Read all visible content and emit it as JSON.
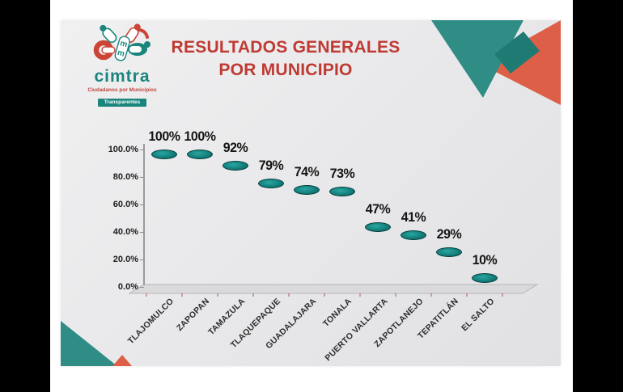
{
  "window": {
    "outer_bg": "#000000",
    "page_bg": "#ffffff",
    "card_bg": "#e9e9eb"
  },
  "logo": {
    "wordmark": "cimtra",
    "subtitle": "Ciudadanos por Municipios",
    "banner": "Transparentes",
    "teal": "#1a857d",
    "red": "#cc4436"
  },
  "title": {
    "line1": "RESULTADOS GENERALES",
    "line2": "POR MUNICIPIO",
    "color": "#bf3a33"
  },
  "chart_data": {
    "type": "bar",
    "style": "3d-cylinder",
    "title": "RESULTADOS GENERALES POR MUNICIPIO",
    "categories": [
      "TLAJOMULCO",
      "ZAPOPAN",
      "TAMAZULA",
      "TLAQUEPAQUE",
      "GUADALAJARA",
      "TONALA",
      "PUERTO VALLARTA",
      "ZAPOTLANEJO",
      "TEPATITLÁN",
      "EL SALTO"
    ],
    "values": [
      100,
      100,
      92,
      79,
      74,
      73,
      47,
      41,
      29,
      10
    ],
    "data_labels": [
      "100%",
      "100%",
      "92%",
      "79%",
      "74%",
      "73%",
      "47%",
      "41%",
      "29%",
      "10%"
    ],
    "y_ticks": [
      "0.0%",
      "20.0%",
      "40.0%",
      "60.0%",
      "80.0%",
      "100.0%"
    ],
    "ylim": [
      0,
      100
    ],
    "xlabel": "",
    "ylabel": "",
    "legend": "none",
    "grid": "off",
    "bar_color": "#11807d",
    "bar_edge_color": "#074948",
    "value_label_color": "#141414"
  },
  "decor": {
    "teal": "#2f8d85",
    "teal_dark": "#1e7a72",
    "coral": "#dd5f48"
  }
}
